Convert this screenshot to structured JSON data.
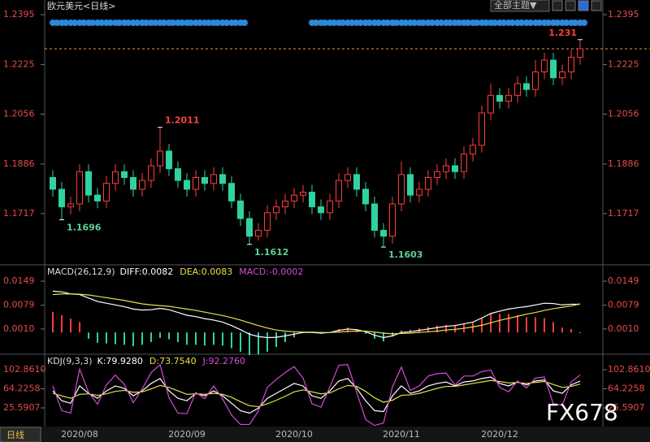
{
  "ui": {
    "theme_button": "全部主题▼",
    "period_tab": "日线",
    "watermark": "FX678"
  },
  "chart_data": [
    {
      "type": "candlestick",
      "title": "欧元美元<日线>",
      "ylim": [
        1.1545,
        1.2445
      ],
      "yticks": [
        1.2395,
        1.2225,
        1.2056,
        1.1886,
        1.1717
      ],
      "up_color": "#ff3b3b",
      "down_color": "#2fd2a0",
      "price_line": 1.2279,
      "price_line_color": "#e8a030",
      "categories": [
        null,
        null,
        null,
        "2020/08",
        null,
        null,
        null,
        null,
        null,
        null,
        null,
        null,
        null,
        null,
        null,
        "2020/09",
        null,
        null,
        null,
        null,
        null,
        null,
        null,
        null,
        null,
        null,
        null,
        "2020/10",
        null,
        null,
        null,
        null,
        null,
        null,
        null,
        null,
        null,
        null,
        null,
        "2020/11",
        null,
        null,
        null,
        null,
        null,
        null,
        null,
        null,
        null,
        null,
        "2020/12",
        null,
        null,
        null,
        null,
        null,
        null,
        null,
        null,
        null
      ],
      "ohlc": [
        [
          1.184,
          1.1865,
          1.1775,
          1.18
        ],
        [
          1.18,
          1.1825,
          1.1696,
          1.174
        ],
        [
          1.174,
          1.1775,
          1.1715,
          1.175
        ],
        [
          1.175,
          1.1885,
          1.1725,
          1.186
        ],
        [
          1.186,
          1.1885,
          1.1755,
          1.178
        ],
        [
          1.178,
          1.1805,
          1.1735,
          1.176
        ],
        [
          1.176,
          1.1845,
          1.1735,
          1.182
        ],
        [
          1.182,
          1.1885,
          1.1795,
          1.186
        ],
        [
          1.186,
          1.1885,
          1.1815,
          1.184
        ],
        [
          1.184,
          1.1865,
          1.1775,
          1.18
        ],
        [
          1.18,
          1.1855,
          1.1775,
          1.183
        ],
        [
          1.183,
          1.1905,
          1.1805,
          1.188
        ],
        [
          1.188,
          1.2011,
          1.1855,
          1.193
        ],
        [
          1.193,
          1.1955,
          1.1845,
          1.187
        ],
        [
          1.187,
          1.1895,
          1.1805,
          1.183
        ],
        [
          1.183,
          1.1855,
          1.1775,
          1.18
        ],
        [
          1.18,
          1.1865,
          1.1775,
          1.184
        ],
        [
          1.184,
          1.1865,
          1.1795,
          1.182
        ],
        [
          1.182,
          1.1875,
          1.1795,
          1.185
        ],
        [
          1.185,
          1.1875,
          1.1795,
          1.182
        ],
        [
          1.182,
          1.1845,
          1.1735,
          1.176
        ],
        [
          1.176,
          1.1785,
          1.1675,
          1.17
        ],
        [
          1.17,
          1.1725,
          1.1612,
          1.164
        ],
        [
          1.164,
          1.1685,
          1.1625,
          1.166
        ],
        [
          1.166,
          1.1745,
          1.1635,
          1.172
        ],
        [
          1.172,
          1.1765,
          1.1695,
          1.174
        ],
        [
          1.174,
          1.1785,
          1.1715,
          1.176
        ],
        [
          1.176,
          1.1805,
          1.1735,
          1.178
        ],
        [
          1.178,
          1.1815,
          1.1755,
          1.179
        ],
        [
          1.179,
          1.1815,
          1.1715,
          1.174
        ],
        [
          1.174,
          1.1765,
          1.1695,
          1.172
        ],
        [
          1.172,
          1.1785,
          1.1695,
          1.176
        ],
        [
          1.176,
          1.1855,
          1.1735,
          1.183
        ],
        [
          1.183,
          1.1875,
          1.1805,
          1.185
        ],
        [
          1.185,
          1.1875,
          1.1775,
          1.18
        ],
        [
          1.18,
          1.1825,
          1.1725,
          1.175
        ],
        [
          1.175,
          1.1775,
          1.1635,
          1.166
        ],
        [
          1.166,
          1.1685,
          1.1603,
          1.164
        ],
        [
          1.164,
          1.1775,
          1.1615,
          1.175
        ],
        [
          1.175,
          1.1895,
          1.1725,
          1.185
        ],
        [
          1.185,
          1.1875,
          1.1755,
          1.178
        ],
        [
          1.178,
          1.1825,
          1.1755,
          1.18
        ],
        [
          1.18,
          1.1865,
          1.1775,
          1.184
        ],
        [
          1.184,
          1.1885,
          1.1815,
          1.186
        ],
        [
          1.186,
          1.1905,
          1.1835,
          1.188
        ],
        [
          1.188,
          1.1905,
          1.1835,
          1.186
        ],
        [
          1.186,
          1.1945,
          1.1835,
          1.192
        ],
        [
          1.192,
          1.1975,
          1.1895,
          1.195
        ],
        [
          1.195,
          1.2085,
          1.1925,
          1.206
        ],
        [
          1.206,
          1.216,
          1.2035,
          1.212
        ],
        [
          1.212,
          1.2145,
          1.2075,
          1.21
        ],
        [
          1.21,
          1.2145,
          1.2075,
          1.212
        ],
        [
          1.212,
          1.2185,
          1.2095,
          1.216
        ],
        [
          1.216,
          1.2185,
          1.2115,
          1.214
        ],
        [
          1.214,
          1.224,
          1.2115,
          1.22
        ],
        [
          1.22,
          1.2265,
          1.2175,
          1.224
        ],
        [
          1.224,
          1.2265,
          1.2155,
          1.218
        ],
        [
          1.218,
          1.2225,
          1.2155,
          1.22
        ],
        [
          1.22,
          1.2275,
          1.2175,
          1.225
        ],
        [
          1.225,
          1.231,
          1.2225,
          1.2279
        ]
      ],
      "annotations": [
        1.2011,
        1.1696,
        1.1612,
        1.1603,
        1.231
      ]
    },
    {
      "type": "macd",
      "title": "MACD(26,12,9)",
      "ylim": [
        -0.0061,
        0.0194
      ],
      "yticks": [
        0.0149,
        0.0079,
        {
          "value": 0.001,
          "label": "0.0010"
        }
      ],
      "up_color": "#ff3b3b",
      "down_color": "#2fd2a0",
      "series": [
        {
          "name": "DIFF:0.0082",
          "color": "#ffffff",
          "values": [
            0.012,
            0.0118,
            0.0112,
            0.011,
            0.01,
            0.009,
            0.0085,
            0.008,
            0.0075,
            0.0068,
            0.0065,
            0.0066,
            0.007,
            0.0066,
            0.0058,
            0.005,
            0.0046,
            0.004,
            0.0036,
            0.003,
            0.002,
            0.0008,
            -0.0005,
            -0.0012,
            -0.0015,
            -0.0014,
            -0.001,
            -0.0005,
            0.0,
            0.0,
            -0.0002,
            0.0,
            0.0006,
            0.001,
            0.0008,
            0.0002,
            -0.0008,
            -0.0015,
            -0.001,
            0.0,
            0.0002,
            0.0006,
            0.001,
            0.0014,
            0.0018,
            0.002,
            0.0025,
            0.003,
            0.0042,
            0.0055,
            0.0062,
            0.0068,
            0.0072,
            0.0075,
            0.008,
            0.0085,
            0.0084,
            0.008,
            0.0082,
            0.0082
          ]
        },
        {
          "name": "DEA:0.0083",
          "color": "#e8e04a",
          "values": [
            0.011,
            0.0112,
            0.0112,
            0.0111,
            0.0109,
            0.0105,
            0.0101,
            0.0097,
            0.0093,
            0.0088,
            0.0083,
            0.008,
            0.0078,
            0.0076,
            0.0072,
            0.0068,
            0.0064,
            0.0059,
            0.0054,
            0.0049,
            0.0043,
            0.0036,
            0.0028,
            0.002,
            0.0013,
            0.0007,
            0.0004,
            0.0002,
            0.0001,
            0.0001,
            0.0,
            0.0,
            0.0001,
            0.0003,
            0.0004,
            0.0004,
            0.0001,
            -0.0002,
            -0.0004,
            -0.0003,
            -0.0002,
            0.0,
            0.0002,
            0.0004,
            0.0007,
            0.0009,
            0.0012,
            0.0016,
            0.0021,
            0.0028,
            0.0035,
            0.0041,
            0.0047,
            0.0053,
            0.0058,
            0.0064,
            0.0069,
            0.0073,
            0.0077,
            0.0083
          ]
        },
        {
          "name": "MACD:-0.0002",
          "color": "#d64bd6",
          "bars": true,
          "values": [
            0.006,
            0.005,
            0.004,
            0.003,
            -0.0018,
            -0.003,
            -0.0032,
            -0.0034,
            -0.0036,
            -0.004,
            -0.0036,
            -0.0028,
            -0.0016,
            -0.002,
            -0.0028,
            -0.0036,
            -0.0036,
            -0.0038,
            -0.0036,
            -0.0038,
            -0.0046,
            -0.0056,
            -0.0066,
            -0.0064,
            -0.0056,
            -0.0042,
            -0.0028,
            -0.0014,
            -0.0002,
            -0.0002,
            -0.0004,
            0.0,
            0.001,
            0.0014,
            0.0008,
            -0.0004,
            -0.0018,
            -0.0026,
            -0.0012,
            0.0006,
            0.0008,
            0.0012,
            0.0016,
            0.002,
            0.0022,
            0.0022,
            0.0026,
            0.0028,
            0.0042,
            0.0054,
            0.0054,
            0.0054,
            0.005,
            0.0044,
            0.0044,
            0.0042,
            0.003,
            0.0014,
            0.001,
            -0.0002
          ]
        }
      ]
    },
    {
      "type": "line",
      "title": "KDJ(9,3,3)",
      "ylim": [
        -12.2,
        132.4
      ],
      "yticks": [
        {
          "value": 102.861,
          "label": "102.8610"
        },
        64.2258,
        25.5907
      ],
      "series": [
        {
          "name": "K:79.9280",
          "color": "#ffffff",
          "values": [
            60,
            40,
            35,
            70,
            55,
            45,
            60,
            70,
            65,
            50,
            60,
            75,
            85,
            60,
            45,
            40,
            55,
            50,
            60,
            50,
            35,
            20,
            15,
            25,
            45,
            55,
            65,
            75,
            70,
            50,
            45,
            60,
            80,
            85,
            65,
            40,
            20,
            18,
            50,
            70,
            55,
            60,
            70,
            75,
            78,
            70,
            78,
            80,
            85,
            88,
            75,
            70,
            78,
            72,
            80,
            82,
            60,
            55,
            72,
            79.928
          ]
        },
        {
          "name": "D:73.7540",
          "color": "#e8e04a",
          "values": [
            55,
            50,
            45,
            53,
            54,
            51,
            54,
            59,
            61,
            57,
            58,
            64,
            71,
            67,
            60,
            53,
            54,
            53,
            55,
            53,
            47,
            38,
            30,
            28,
            34,
            41,
            49,
            58,
            62,
            58,
            54,
            56,
            64,
            71,
            69,
            59,
            46,
            37,
            41,
            51,
            52,
            55,
            60,
            65,
            69,
            69,
            72,
            75,
            78,
            81,
            79,
            76,
            77,
            75,
            77,
            79,
            73,
            67,
            69,
            73.754
          ]
        },
        {
          "name": "J:92.2760",
          "color": "#d64bd6",
          "values": [
            70,
            20,
            15,
            104,
            57,
            33,
            72,
            92,
            73,
            36,
            64,
            97,
            113,
            46,
            15,
            14,
            57,
            44,
            70,
            44,
            11,
            -8,
            -8,
            19,
            67,
            83,
            97,
            109,
            86,
            34,
            27,
            68,
            112,
            113,
            57,
            2,
            -10,
            -5,
            68,
            108,
            61,
            70,
            90,
            95,
            96,
            72,
            90,
            90,
            99,
            102,
            67,
            58,
            80,
            66,
            86,
            88,
            34,
            31,
            78,
            92.276
          ]
        }
      ]
    }
  ]
}
